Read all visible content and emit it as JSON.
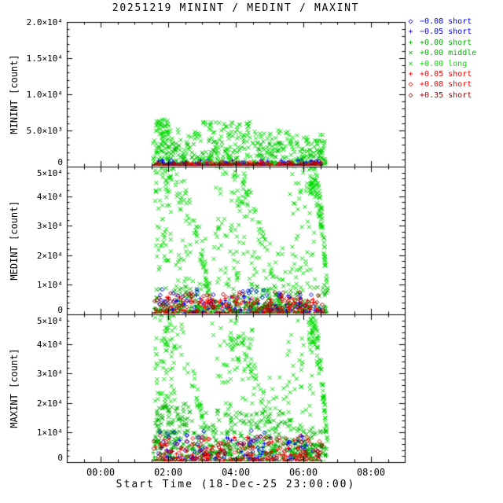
{
  "chart_data": {
    "type": "scatter",
    "title": "20251219 MININT / MEDINT / MAXINT",
    "xlabel": "Start Time (18-Dec-25 23:00:00)",
    "x_axis": {
      "range_hours": [
        -1,
        9
      ],
      "major_ticks": [
        0,
        2,
        4,
        6,
        8
      ],
      "tick_labels": [
        "00:00",
        "02:00",
        "04:00",
        "06:00",
        "08:00"
      ],
      "minor_tick_step": 0.5
    },
    "legend": {
      "position": "top-right",
      "entries": [
        {
          "marker": "diamond",
          "color": "#0000ff",
          "label": "−0.08 short"
        },
        {
          "marker": "plus",
          "color": "#0000ff",
          "label": "−0.05 short"
        },
        {
          "marker": "plus",
          "color": "#00b400",
          "label": "+0.00 short"
        },
        {
          "marker": "x",
          "color": "#00b400",
          "label": "+0.00 middle"
        },
        {
          "marker": "x",
          "color": "#00dc00",
          "label": "+0.00 long"
        },
        {
          "marker": "plus",
          "color": "#ff0000",
          "label": "+0.05 short"
        },
        {
          "marker": "diamond",
          "color": "#ff0000",
          "label": "+0.08 short"
        },
        {
          "marker": "diamond",
          "color": "#990000",
          "label": "+0.35 short"
        }
      ]
    },
    "seed": 20251219,
    "data_time_span_hours": [
      1.55,
      6.72
    ],
    "panels": [
      {
        "name": "MININT",
        "ylabel": "MININT [count]",
        "yrange": [
          0,
          20000
        ],
        "yminor_step": 1000,
        "ymajor": [
          {
            "v": 0,
            "label": "0"
          },
          {
            "v": 5000,
            "label": "5.0×10³"
          },
          {
            "v": 10000,
            "label": "1.0×10⁴"
          },
          {
            "v": 15000,
            "label": "1.5×10⁴"
          },
          {
            "v": 20000,
            "label": "2.0×10⁴"
          }
        ],
        "series": [
          {
            "marker": "x",
            "color": "#00dc00",
            "segments": [
              [
                1.55,
                2.05,
                80,
                600,
                6600,
                1.1
              ],
              [
                2.05,
                3.0,
                55,
                300,
                5200,
                1.4
              ],
              [
                3.0,
                4.5,
                120,
                300,
                6200,
                1.3
              ],
              [
                4.5,
                5.6,
                70,
                300,
                5200,
                1.5
              ],
              [
                5.6,
                6.65,
                90,
                250,
                4800,
                1.4
              ]
            ]
          },
          {
            "marker": "x",
            "color": "#00b400",
            "segments": [
              [
                1.55,
                6.65,
                120,
                150,
                3500,
                1.8
              ]
            ]
          },
          {
            "marker": "plus",
            "color": "#00b400",
            "segments": [
              [
                1.55,
                6.6,
                220,
                0,
                700,
                1.8
              ]
            ]
          },
          {
            "marker": "plus",
            "color": "#0000ff",
            "segments": [
              [
                1.6,
                6.55,
                45,
                0,
                900,
                1.5
              ]
            ]
          },
          {
            "marker": "diamond",
            "color": "#0000ff",
            "segments": [
              [
                1.6,
                6.55,
                40,
                50,
                900,
                1.5
              ]
            ]
          },
          {
            "marker": "plus",
            "color": "#ff0000",
            "segments": [
              [
                1.6,
                6.55,
                70,
                0,
                650,
                1.6
              ]
            ]
          },
          {
            "marker": "diamond",
            "color": "#ff0000",
            "segments": [
              [
                1.6,
                6.55,
                40,
                0,
                650,
                1.6
              ]
            ]
          },
          {
            "marker": "diamond",
            "color": "#990000",
            "segments": [
              [
                1.55,
                6.6,
                110,
                0,
                450,
                1.8
              ]
            ]
          }
        ]
      },
      {
        "name": "MEDINT",
        "ylabel": "MEDINT [count]",
        "yrange": [
          0,
          50000
        ],
        "yminor_step": 2000,
        "ymajor": [
          {
            "v": 0,
            "label": "0"
          },
          {
            "v": 10000,
            "label": "1×10⁴"
          },
          {
            "v": 20000,
            "label": "2×10⁴"
          },
          {
            "v": 30000,
            "label": "3×10⁴"
          },
          {
            "v": 40000,
            "label": "4×10⁴"
          },
          {
            "v": 50000,
            "label": "5×10⁴"
          }
        ],
        "series": [
          {
            "marker": "x",
            "color": "#00dc00",
            "segments": [
              [
                1.6,
                2.1,
                50,
                15000,
                50000,
                1.0
              ],
              [
                1.9,
                3.3,
                80,
                2000,
                50000,
                1.0,
                "fall"
              ],
              [
                2.2,
                3.4,
                50,
                2000,
                30000,
                1.2
              ],
              [
                3.4,
                4.4,
                80,
                4000,
                52000,
                1.0
              ],
              [
                3.9,
                5.3,
                60,
                2000,
                45000,
                1.1,
                "fall"
              ],
              [
                4.4,
                5.7,
                50,
                1500,
                25000,
                1.3
              ],
              [
                5.6,
                6.35,
                55,
                8000,
                50000,
                1.0
              ],
              [
                6.2,
                6.72,
                110,
                8000,
                52000,
                1.0,
                "fall"
              ]
            ]
          },
          {
            "marker": "x",
            "color": "#00b400",
            "segments": [
              [
                1.55,
                6.7,
                140,
                500,
                10000,
                1.6
              ]
            ]
          },
          {
            "marker": "plus",
            "color": "#00b400",
            "segments": [
              [
                1.55,
                6.7,
                300,
                0,
                4500,
                2.0
              ]
            ]
          },
          {
            "marker": "diamond",
            "color": "#0000ff",
            "segments": [
              [
                1.7,
                6.5,
                60,
                500,
                8500,
                1.4
              ]
            ]
          },
          {
            "marker": "plus",
            "color": "#0000ff",
            "segments": [
              [
                1.7,
                6.5,
                50,
                300,
                7000,
                1.5
              ]
            ]
          },
          {
            "marker": "plus",
            "color": "#ff0000",
            "segments": [
              [
                1.6,
                6.5,
                80,
                200,
                6000,
                1.5
              ]
            ]
          },
          {
            "marker": "diamond",
            "color": "#ff0000",
            "segments": [
              [
                1.6,
                6.5,
                50,
                200,
                6500,
                1.5
              ]
            ]
          },
          {
            "marker": "diamond",
            "color": "#990000",
            "segments": [
              [
                1.55,
                6.6,
                150,
                0,
                7500,
                1.9
              ]
            ]
          }
        ]
      },
      {
        "name": "MAXINT",
        "ylabel": "MAXINT [count]",
        "yrange": [
          0,
          50000
        ],
        "yminor_step": 2000,
        "ymajor": [
          {
            "v": 0,
            "label": "0"
          },
          {
            "v": 10000,
            "label": "1×10⁴"
          },
          {
            "v": 20000,
            "label": "2×10⁴"
          },
          {
            "v": 30000,
            "label": "3×10⁴"
          },
          {
            "v": 40000,
            "label": "4×10⁴"
          },
          {
            "v": 50000,
            "label": "5×10⁴"
          }
        ],
        "series": [
          {
            "marker": "x",
            "color": "#00dc00",
            "segments": [
              [
                1.6,
                2.2,
                60,
                20000,
                50000,
                1.0
              ],
              [
                1.9,
                3.2,
                60,
                3000,
                50000,
                1.0,
                "fall"
              ],
              [
                3.3,
                4.5,
                70,
                5000,
                52000,
                1.0
              ],
              [
                3.8,
                5.1,
                50,
                3000,
                45000,
                1.1,
                "fall"
              ],
              [
                4.5,
                5.7,
                40,
                2000,
                30000,
                1.2
              ],
              [
                5.5,
                6.3,
                50,
                10000,
                48000,
                1.0
              ],
              [
                6.15,
                6.72,
                100,
                6000,
                52000,
                1.0,
                "fall"
              ]
            ]
          },
          {
            "marker": "x",
            "color": "#00b400",
            "segments": [
              [
                1.6,
                2.6,
                110,
                6000,
                20000,
                1.2
              ],
              [
                2.6,
                5.6,
                140,
                3000,
                18000,
                1.4
              ],
              [
                5.6,
                6.7,
                70,
                2000,
                12000,
                1.4
              ]
            ]
          },
          {
            "marker": "plus",
            "color": "#00b400",
            "segments": [
              [
                1.55,
                6.7,
                260,
                0,
                6000,
                1.9
              ]
            ]
          },
          {
            "marker": "diamond",
            "color": "#0000ff",
            "segments": [
              [
                1.7,
                6.55,
                60,
                500,
                11000,
                1.5
              ]
            ]
          },
          {
            "marker": "plus",
            "color": "#0000ff",
            "segments": [
              [
                1.7,
                6.55,
                50,
                300,
                9000,
                1.5
              ]
            ]
          },
          {
            "marker": "plus",
            "color": "#ff0000",
            "segments": [
              [
                1.6,
                6.55,
                80,
                200,
                8500,
                1.6
              ]
            ]
          },
          {
            "marker": "diamond",
            "color": "#ff0000",
            "segments": [
              [
                1.6,
                6.55,
                50,
                200,
                8500,
                1.6
              ]
            ]
          },
          {
            "marker": "diamond",
            "color": "#990000",
            "segments": [
              [
                1.55,
                6.6,
                150,
                0,
                9000,
                1.9
              ]
            ]
          }
        ]
      }
    ]
  }
}
